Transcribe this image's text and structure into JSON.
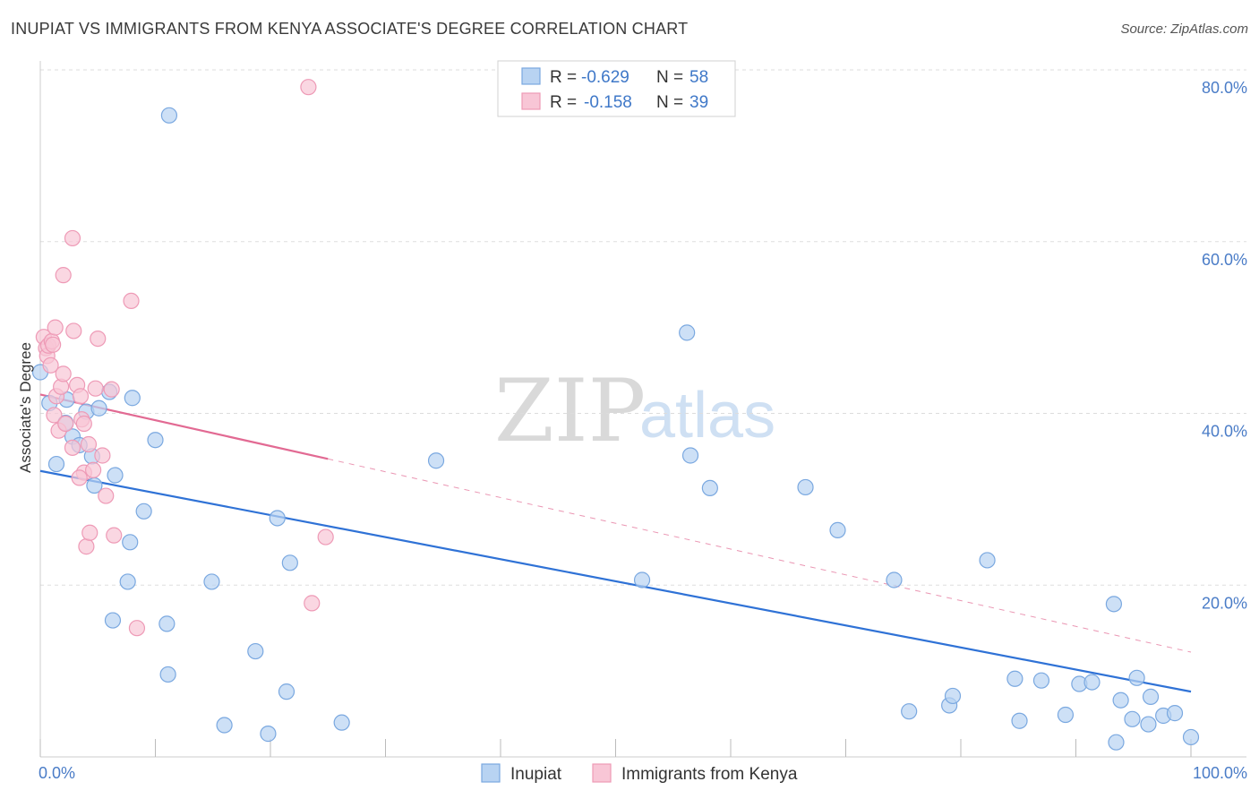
{
  "title": "INUPIAT VS IMMIGRANTS FROM KENYA ASSOCIATE'S DEGREE CORRELATION CHART",
  "source": "Source: ZipAtlas.com",
  "watermark": {
    "zip": "ZIP",
    "atlas": "atlas"
  },
  "colors": {
    "inupiat_fill": "#b8d3f2",
    "inupiat_stroke": "#7aa8e0",
    "inupiat_line": "#2f72d6",
    "kenya_fill": "#f8c6d6",
    "kenya_stroke": "#ee9ab6",
    "kenya_line": "#e26a93",
    "grid": "#dddddd",
    "tick_text": "#4a7cc7"
  },
  "legend": {
    "rows": [
      {
        "r_label": "R =",
        "r_value": "-0.629",
        "n_label": "N =",
        "n_value": "58"
      },
      {
        "r_label": "R =",
        "r_value": "-0.158",
        "n_label": "N =",
        "n_value": "39"
      }
    ]
  },
  "bottom_legend": [
    "Inupiat",
    "Immigrants from Kenya"
  ],
  "chart_data": {
    "type": "scatter",
    "title": "INUPIAT VS IMMIGRANTS FROM KENYA ASSOCIATE'S DEGREE CORRELATION CHART",
    "xlabel": "",
    "ylabel": "Associate's Degree",
    "xlim": [
      0,
      100
    ],
    "ylim": [
      0,
      80
    ],
    "x_tick_labels": [
      "0.0%",
      "100.0%"
    ],
    "y_ticks": [
      20,
      40,
      60,
      80
    ],
    "y_tick_labels": [
      "20.0%",
      "40.0%",
      "60.0%",
      "80.0%"
    ],
    "grid": true,
    "legend_position": "top-center",
    "series": [
      {
        "name": "Inupiat",
        "R": -0.629,
        "N": 58,
        "trend": {
          "x0": 0,
          "y0": 33.3,
          "x1": 100,
          "y1": 7.6
        },
        "points": [
          [
            0,
            44.8
          ],
          [
            0.8,
            41.2
          ],
          [
            1.4,
            34.1
          ],
          [
            2.2,
            38.9
          ],
          [
            2.3,
            41.6
          ],
          [
            2.8,
            37.3
          ],
          [
            3.4,
            36.3
          ],
          [
            4.0,
            40.2
          ],
          [
            4.5,
            35.0
          ],
          [
            4.7,
            31.6
          ],
          [
            5.1,
            40.6
          ],
          [
            6.0,
            42.5
          ],
          [
            6.5,
            32.8
          ],
          [
            7.8,
            25.0
          ],
          [
            8.0,
            41.8
          ],
          [
            9.0,
            28.6
          ],
          [
            10.0,
            36.9
          ],
          [
            11.0,
            15.5
          ],
          [
            6.3,
            15.9
          ],
          [
            7.6,
            20.4
          ],
          [
            11.2,
            74.7
          ],
          [
            11.1,
            9.6
          ],
          [
            14.9,
            20.4
          ],
          [
            16.0,
            3.7
          ],
          [
            18.7,
            12.3
          ],
          [
            19.8,
            2.7
          ],
          [
            20.6,
            27.8
          ],
          [
            21.4,
            7.6
          ],
          [
            21.7,
            22.6
          ],
          [
            26.2,
            4.0
          ],
          [
            34.4,
            34.5
          ],
          [
            52.3,
            20.6
          ],
          [
            56.2,
            49.4
          ],
          [
            56.5,
            35.1
          ],
          [
            58.2,
            31.3
          ],
          [
            66.5,
            31.4
          ],
          [
            69.3,
            26.4
          ],
          [
            74.2,
            20.6
          ],
          [
            75.5,
            5.3
          ],
          [
            79.0,
            6.0
          ],
          [
            79.3,
            7.1
          ],
          [
            82.3,
            22.9
          ],
          [
            84.7,
            9.1
          ],
          [
            85.1,
            4.2
          ],
          [
            87.0,
            8.9
          ],
          [
            89.1,
            4.9
          ],
          [
            90.3,
            8.5
          ],
          [
            91.4,
            8.7
          ],
          [
            93.3,
            17.8
          ],
          [
            93.5,
            1.7
          ],
          [
            93.9,
            6.6
          ],
          [
            94.9,
            4.4
          ],
          [
            95.3,
            9.2
          ],
          [
            96.3,
            3.8
          ],
          [
            96.5,
            7.0
          ],
          [
            97.6,
            4.8
          ],
          [
            98.6,
            5.1
          ],
          [
            100.0,
            2.3
          ]
        ]
      },
      {
        "name": "Immigrants from Kenya",
        "R": -0.158,
        "N": 39,
        "trend": {
          "x0": 0,
          "y0": 42.2,
          "x1": 25,
          "y1": 34.7,
          "dash_to_x": 100,
          "dash_to_y": 12.2
        },
        "points": [
          [
            0.3,
            48.9
          ],
          [
            0.5,
            47.6
          ],
          [
            0.6,
            46.7
          ],
          [
            0.7,
            47.9
          ],
          [
            0.9,
            45.6
          ],
          [
            1.0,
            48.4
          ],
          [
            1.2,
            39.8
          ],
          [
            1.3,
            50.0
          ],
          [
            1.4,
            42.0
          ],
          [
            1.6,
            38.0
          ],
          [
            1.8,
            43.1
          ],
          [
            2.0,
            44.6
          ],
          [
            2.2,
            38.8
          ],
          [
            2.8,
            36.0
          ],
          [
            2.9,
            49.6
          ],
          [
            2.0,
            56.1
          ],
          [
            2.8,
            60.4
          ],
          [
            3.2,
            43.3
          ],
          [
            3.5,
            42.0
          ],
          [
            3.8,
            33.1
          ],
          [
            3.4,
            32.5
          ],
          [
            3.6,
            39.3
          ],
          [
            4.0,
            24.5
          ],
          [
            4.2,
            36.4
          ],
          [
            3.8,
            38.8
          ],
          [
            4.3,
            26.1
          ],
          [
            4.6,
            33.4
          ],
          [
            4.8,
            42.9
          ],
          [
            5.0,
            48.7
          ],
          [
            5.4,
            35.1
          ],
          [
            5.7,
            30.4
          ],
          [
            6.2,
            42.8
          ],
          [
            6.4,
            25.8
          ],
          [
            7.9,
            53.1
          ],
          [
            8.4,
            15.0
          ],
          [
            23.3,
            78.0
          ],
          [
            23.6,
            17.9
          ],
          [
            24.8,
            25.6
          ],
          [
            1.1,
            48.0
          ]
        ]
      }
    ]
  }
}
